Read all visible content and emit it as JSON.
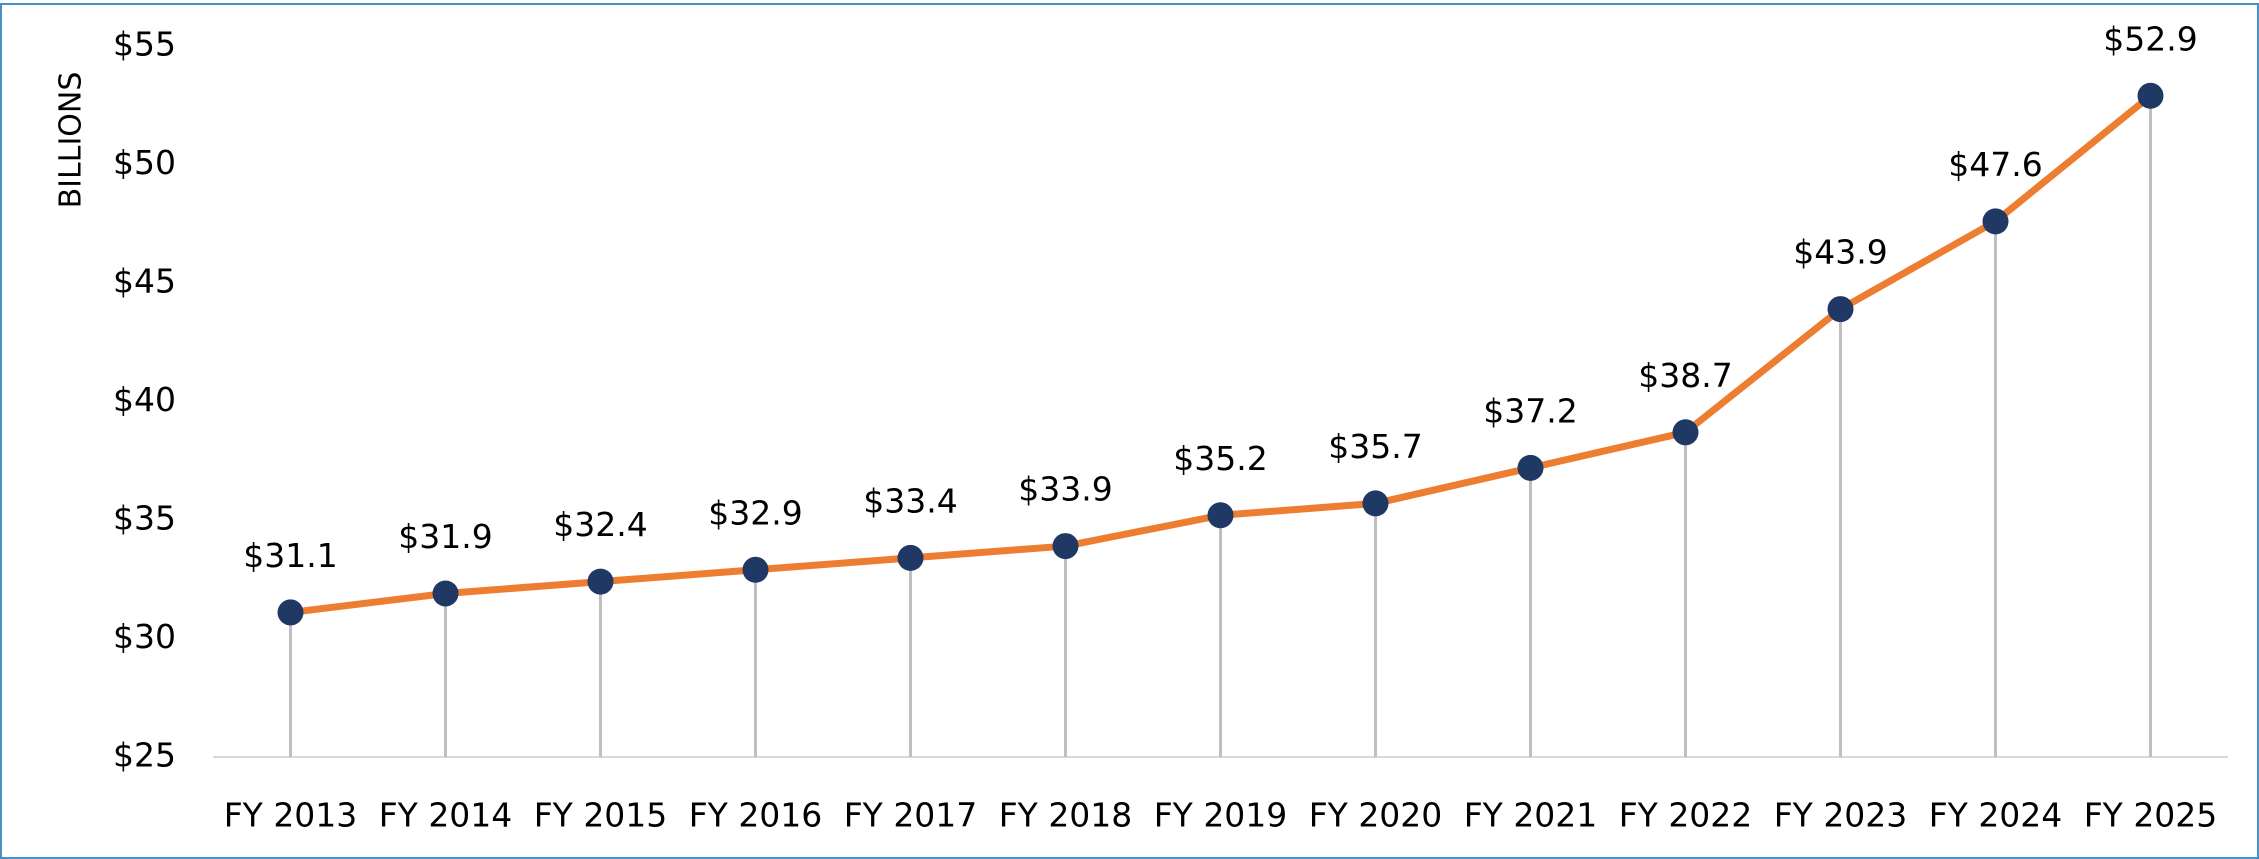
{
  "chart_data": {
    "type": "line",
    "y_label": "BILLIONS",
    "categories": [
      "FY 2013",
      "FY 2014",
      "FY 2015",
      "FY 2016",
      "FY 2017",
      "FY 2018",
      "FY 2019",
      "FY 2020",
      "FY 2021",
      "FY 2022",
      "FY 2023",
      "FY 2024",
      "FY 2025"
    ],
    "values": [
      31.1,
      31.9,
      32.4,
      32.9,
      33.4,
      33.9,
      35.2,
      35.7,
      37.2,
      38.7,
      43.9,
      47.6,
      52.9
    ],
    "value_labels": [
      "$31.1",
      "$31.9",
      "$32.4",
      "$32.9",
      "$33.4",
      "$33.9",
      "$35.2",
      "$35.7",
      "$37.2",
      "$38.7",
      "$43.9",
      "$47.6",
      "$52.9"
    ],
    "color": "#ed7d31",
    "marker_color": "#1f3864",
    "dropline_color": "#bfbfbf",
    "ylim": [
      25,
      55
    ],
    "yticks": [
      {
        "value": 25,
        "label": "$25"
      },
      {
        "value": 30,
        "label": "$30"
      },
      {
        "value": 35,
        "label": "$35"
      },
      {
        "value": 40,
        "label": "$40"
      },
      {
        "value": 45,
        "label": "$45"
      },
      {
        "value": 50,
        "label": "$50"
      },
      {
        "value": 55,
        "label": "$55"
      }
    ],
    "grid": false
  }
}
